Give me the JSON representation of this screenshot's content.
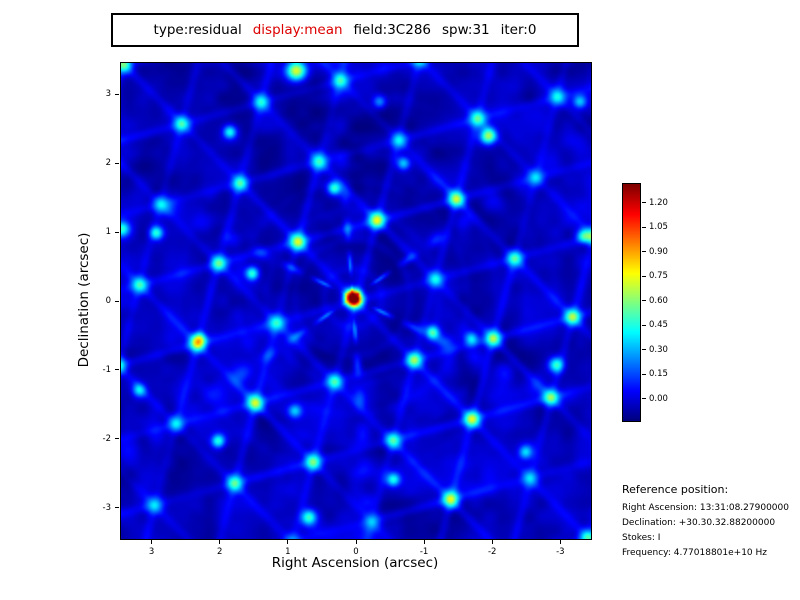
{
  "title_box": {
    "segments": [
      {
        "text": "type:residual",
        "color": "#000000"
      },
      {
        "text": "display:mean",
        "color": "#dd0000"
      },
      {
        "text": "field:3C286",
        "color": "#000000"
      },
      {
        "text": "spw:31",
        "color": "#000000"
      },
      {
        "text": "iter:0",
        "color": "#000000"
      }
    ]
  },
  "chart_data": {
    "type": "heatmap",
    "title": "",
    "xlabel": "Right Ascension (arcsec)",
    "ylabel": "Declination (arcsec)",
    "xlim": [
      3.45,
      -3.45
    ],
    "ylim": [
      -3.45,
      3.45
    ],
    "x_ticks": [
      "3",
      "2",
      "1",
      "0",
      "-1",
      "-2",
      "-3"
    ],
    "y_ticks": [
      "-3",
      "-2",
      "-1",
      "0",
      "1",
      "2",
      "3"
    ],
    "colormap": "jet",
    "colorbar": {
      "ticks": [
        "1.20",
        "1.05",
        "0.90",
        "0.75",
        "0.60",
        "0.45",
        "0.30",
        "0.15",
        "0.00"
      ],
      "value_range": [
        -0.13,
        1.32
      ]
    },
    "background_level": 0.0,
    "source_peak": {
      "ra": 0.05,
      "dec": 0.05,
      "value": 1.3
    },
    "notable_peaks": [
      {
        "ra": 0.88,
        "dec": 3.35,
        "amp": 0.75,
        "s": 0.1
      },
      {
        "ra": 1.86,
        "dec": 2.46,
        "amp": 0.5,
        "s": 0.07
      },
      {
        "ra": -0.35,
        "dec": 2.9,
        "amp": 0.35,
        "s": 0.07
      },
      {
        "ra": -1.95,
        "dec": 2.4,
        "amp": 0.65,
        "s": 0.08
      },
      {
        "ra": 0.32,
        "dec": 1.64,
        "amp": 0.55,
        "s": 0.07
      },
      {
        "ra": -0.7,
        "dec": 2.0,
        "amp": 0.4,
        "s": 0.07
      },
      {
        "ra": 2.94,
        "dec": 0.99,
        "amp": 0.5,
        "s": 0.07
      },
      {
        "ra": 3.45,
        "dec": 1.05,
        "amp": 0.5,
        "s": 0.08
      },
      {
        "ra": 1.53,
        "dec": 0.4,
        "amp": 0.55,
        "s": 0.07
      },
      {
        "ra": -3.35,
        "dec": 0.95,
        "amp": 0.45,
        "s": 0.07
      },
      {
        "ra": -1.13,
        "dec": -0.46,
        "amp": 0.55,
        "s": 0.07
      },
      {
        "ra": -1.7,
        "dec": -0.55,
        "amp": 0.4,
        "s": 0.07
      },
      {
        "ra": -2.95,
        "dec": -0.93,
        "amp": 0.55,
        "s": 0.08
      },
      {
        "ra": 2.3,
        "dec": -0.55,
        "amp": 0.35,
        "s": 0.07
      },
      {
        "ra": 2.03,
        "dec": -2.04,
        "amp": 0.5,
        "s": 0.07
      },
      {
        "ra": 0.9,
        "dec": -1.6,
        "amp": 0.35,
        "s": 0.07
      },
      {
        "ra": -0.55,
        "dec": -2.6,
        "amp": 0.45,
        "s": 0.07
      },
      {
        "ra": 0.7,
        "dec": -3.15,
        "amp": 0.55,
        "s": 0.08
      },
      {
        "ra": -2.5,
        "dec": -2.2,
        "amp": 0.35,
        "s": 0.07
      },
      {
        "ra": 3.2,
        "dec": -1.3,
        "amp": 0.4,
        "s": 0.07
      },
      {
        "ra": -3.3,
        "dec": 2.9,
        "amp": 0.35,
        "s": 0.07
      }
    ],
    "description": "Interferometric residual map: dark-blue background with hexagonal sidelobe web, six-fold dotted radial spokes, scattered cyan compact peaks, and a bright red/yellow point source at the origin"
  },
  "reference": {
    "header": "Reference position:",
    "lines": [
      "Right Ascension: 13:31:08.27900000",
      "Declination: +30.30.32.88200000",
      "Stokes: I",
      "Frequency: 4.77018801e+10 Hz"
    ]
  }
}
